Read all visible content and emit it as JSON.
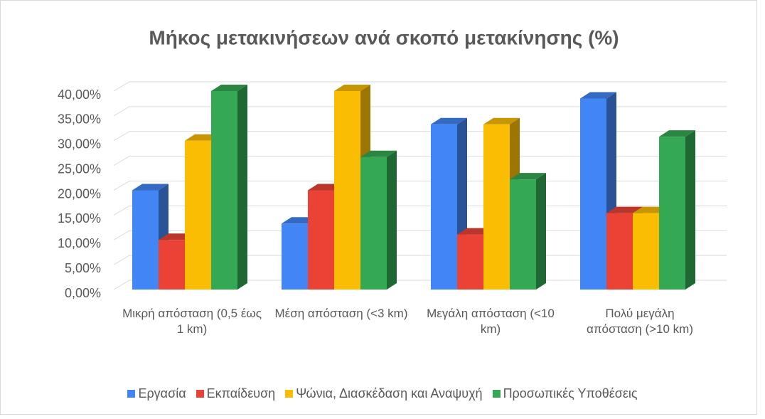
{
  "chart_data": {
    "type": "bar3d",
    "title": "Μήκος μετακινήσεων ανά σκοπό μετακίνησης (%)",
    "categories": [
      "Μικρή απόσταση (0,5 έως 1 km)",
      "Μέση απόσταση (<3 km)",
      "Μεγάλη απόσταση (<10 km)",
      "Πολύ μεγάλη απόσταση (>10 km)"
    ],
    "series": [
      {
        "name": "Εργασία",
        "color": "#4285f4",
        "values": [
          20,
          13.3,
          33.3,
          38.5
        ]
      },
      {
        "name": "Εκπαίδευση",
        "color": "#ea4335",
        "values": [
          10,
          20,
          11.1,
          15.4
        ]
      },
      {
        "name": "Ψώνια, Διασκέδαση και Αναψυχή",
        "color": "#fbbc04",
        "values": [
          30,
          40,
          33.3,
          15.4
        ]
      },
      {
        "name": "Προσωπικές Υποθέσεις",
        "color": "#34a853",
        "values": [
          40,
          26.7,
          22.2,
          30.8
        ]
      }
    ],
    "ylim": [
      0,
      40
    ],
    "yticks": [
      {
        "value": 0,
        "label": "0,00%"
      },
      {
        "value": 5,
        "label": "5,00%"
      },
      {
        "value": 10,
        "label": "10,00%"
      },
      {
        "value": 15,
        "label": "15,00%"
      },
      {
        "value": 20,
        "label": "20,00%"
      },
      {
        "value": 25,
        "label": "25,00%"
      },
      {
        "value": 30,
        "label": "30,00%"
      },
      {
        "value": 35,
        "label": "35,00%"
      },
      {
        "value": 40,
        "label": "40,00%"
      }
    ],
    "grid": true,
    "legend": "bottom"
  }
}
